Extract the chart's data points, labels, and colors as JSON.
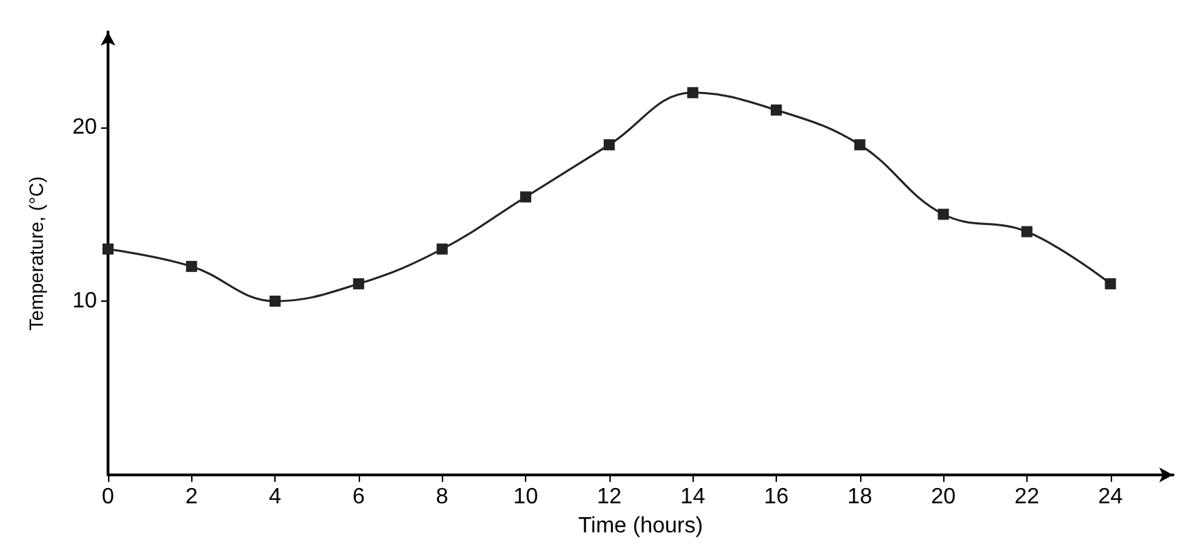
{
  "chart_data": {
    "type": "line",
    "xlabel": "Time (hours)",
    "ylabel": "Temperature, (°C)",
    "x": [
      0,
      2,
      4,
      6,
      8,
      10,
      12,
      14,
      16,
      18,
      20,
      22,
      24
    ],
    "series": [
      {
        "color": "#222222",
        "values": [
          13,
          12,
          10,
          11,
          13,
          16,
          19,
          22,
          21,
          19,
          15,
          14,
          11
        ]
      }
    ],
    "xlim": [
      0,
      25.5
    ],
    "ylim": [
      0,
      25.5
    ],
    "xticks": [
      0,
      2,
      4,
      6,
      8,
      10,
      12,
      14,
      16,
      18,
      20,
      22,
      24
    ],
    "yticks": [
      10,
      20
    ],
    "grid": false,
    "marker": "square",
    "line_style": "solid"
  }
}
